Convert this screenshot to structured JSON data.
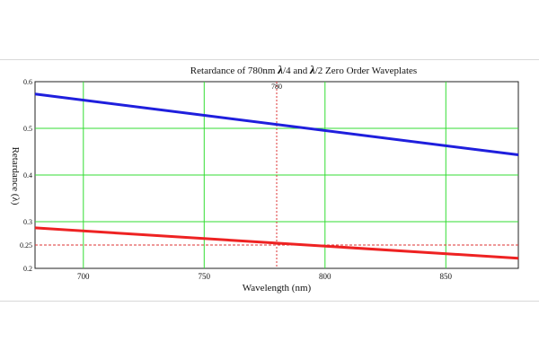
{
  "chart_data": {
    "type": "line",
    "title_parts": [
      "Retardance of 780nm ",
      "λ",
      "/4 and ",
      "λ",
      "/2 Zero Order Waveplates"
    ],
    "xlabel": "Wavelength (nm)",
    "ylabel": "Retardance (λ)",
    "xlim": [
      680,
      880
    ],
    "ylim": [
      0.2,
      0.6
    ],
    "x_ticks": [
      700,
      750,
      800,
      850
    ],
    "y_ticks": [
      0.2,
      0.25,
      0.3,
      0.4,
      0.5,
      0.6
    ],
    "y_tick_labels": [
      "0.2",
      "0.25",
      "0.3",
      "0.4",
      "0.5",
      "0.6"
    ],
    "grid": true,
    "grid_color": "#33dd33",
    "reference_lines": {
      "vertical": {
        "x": 780,
        "label": "780",
        "color": "#dd3333"
      },
      "horizontal": {
        "y": 0.25,
        "color": "#dd3333"
      }
    },
    "series": [
      {
        "color": "#1f1fdd",
        "x": [
          680,
          880
        ],
        "y": [
          0.5735,
          0.4432
        ]
      },
      {
        "color": "#ee2222",
        "x": [
          680,
          880
        ],
        "y": [
          0.2867,
          0.2216
        ]
      }
    ]
  }
}
